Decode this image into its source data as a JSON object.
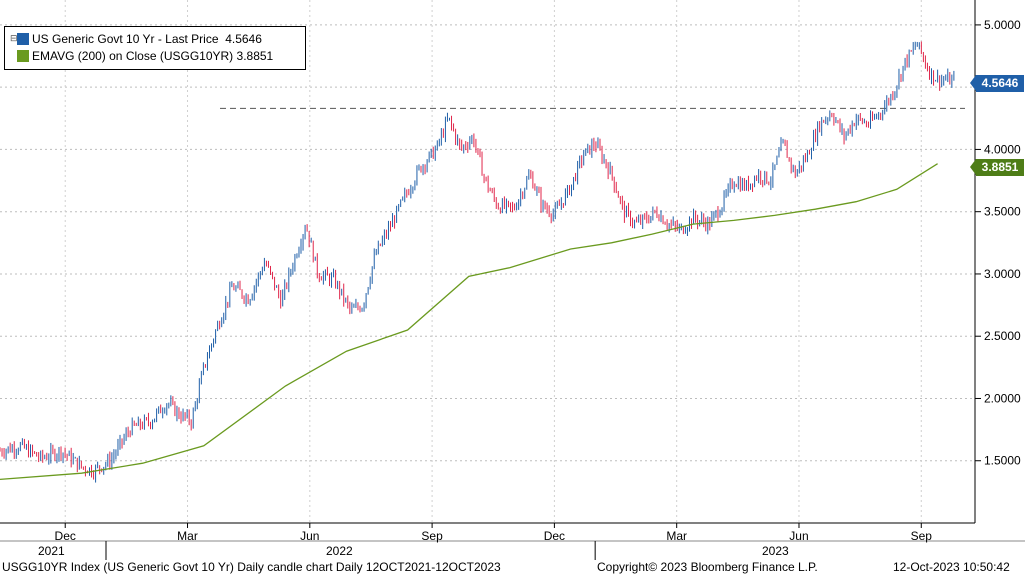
{
  "chart_data": {
    "type": "candlestick",
    "title": "USGG10YR Index (US Generic Govt 10 Yr) Daily candle chart",
    "series": [
      {
        "name": "US Generic Govt 10 Yr - Last Price",
        "last": "4.5646",
        "color": "#1f5fa8",
        "down_color": "#e0264a"
      },
      {
        "name": "EMAVG (200)  on Close (USGG10YR)",
        "last": "3.8851",
        "color": "#6a9a1f"
      }
    ],
    "y_axis": {
      "min": 1.0,
      "max": 5.2,
      "ticks": [
        "5.0000",
        "4.5000",
        "4.0000",
        "3.5000",
        "3.0000",
        "2.5000",
        "2.0000",
        "1.5000"
      ],
      "tick_values": [
        5.0,
        4.5,
        4.0,
        3.5,
        3.0,
        2.5,
        2.0,
        1.5
      ]
    },
    "x_axis": {
      "months": [
        "Dec",
        "Mar",
        "Jun",
        "Sep",
        "Dec",
        "Mar",
        "Jun",
        "Sep"
      ],
      "month_index": [
        1.6,
        4.6,
        7.6,
        10.6,
        13.6,
        16.6,
        19.6,
        22.6
      ],
      "years": [
        "2021",
        "2022",
        "2023"
      ],
      "range_months": [
        0,
        24
      ]
    },
    "resistance_level": 4.33,
    "price_path": {
      "months": [
        0,
        0.5,
        1,
        1.5,
        2,
        2.3,
        2.7,
        3.2,
        3.7,
        4.1,
        4.4,
        4.7,
        5.0,
        5.3,
        5.7,
        6.1,
        6.5,
        6.9,
        7.2,
        7.5,
        7.8,
        8.2,
        8.6,
        8.9,
        9.2,
        9.6,
        9.9,
        10.3,
        10.7,
        11.0,
        11.3,
        11.6,
        11.9,
        12.2,
        12.6,
        13.0,
        13.3,
        13.6,
        14.0,
        14.3,
        14.6,
        15.0,
        15.3,
        15.6,
        15.9,
        16.1,
        16.4,
        16.7,
        17.0,
        17.4,
        17.7,
        18.0,
        18.3,
        18.6,
        18.9,
        19.2,
        19.5,
        19.8,
        20.1,
        20.4,
        20.7,
        21.0,
        21.3,
        21.6,
        21.9,
        22.2,
        22.5,
        22.8,
        23.0,
        23.2,
        23.4
      ],
      "values": [
        1.58,
        1.62,
        1.52,
        1.58,
        1.45,
        1.42,
        1.5,
        1.76,
        1.82,
        1.97,
        1.87,
        1.82,
        2.25,
        2.55,
        2.9,
        2.8,
        3.1,
        2.78,
        3.1,
        3.4,
        3.0,
        2.95,
        2.7,
        2.75,
        3.15,
        3.4,
        3.6,
        3.85,
        4.0,
        4.25,
        4.0,
        4.1,
        3.75,
        3.55,
        3.52,
        3.8,
        3.55,
        3.48,
        3.7,
        3.95,
        4.05,
        3.8,
        3.5,
        3.4,
        3.45,
        3.5,
        3.4,
        3.35,
        3.45,
        3.4,
        3.55,
        3.75,
        3.7,
        3.8,
        3.75,
        4.05,
        3.8,
        3.95,
        4.2,
        4.3,
        4.1,
        4.25,
        4.2,
        4.3,
        4.45,
        4.7,
        4.85,
        4.62,
        4.5646,
        4.56,
        4.55
      ],
      "seed": 7
    },
    "ema_path": {
      "months": [
        0,
        2,
        3.5,
        5,
        7,
        8.5,
        10,
        11.5,
        12.5,
        14,
        15,
        16,
        17,
        18,
        19,
        20,
        21,
        22,
        23
      ],
      "values": [
        1.35,
        1.4,
        1.48,
        1.62,
        2.1,
        2.38,
        2.55,
        2.98,
        3.05,
        3.2,
        3.25,
        3.32,
        3.4,
        3.43,
        3.47,
        3.52,
        3.58,
        3.68,
        3.8851
      ]
    }
  },
  "footer": {
    "left": "USGG10YR Index (US Generic Govt 10 Yr) Daily candle chart  Daily 12OCT2021-12OCT2023",
    "center": "Copyright© 2023 Bloomberg Finance L.P.",
    "right": "12-Oct-2023 10:50:42"
  },
  "legend": {
    "tree_icon": "tree-toggle-icon",
    "line1_label": "US Generic Govt 10 Yr - Last Price",
    "line1_value": "4.5646",
    "line2_label": "EMAVG (200)  on Close (USGG10YR)",
    "line2_value": "3.8851"
  },
  "badges": {
    "price": "4.5646",
    "ema": "3.8851",
    "price_color": "#1f5fa8",
    "ema_color": "#4e7d17"
  }
}
